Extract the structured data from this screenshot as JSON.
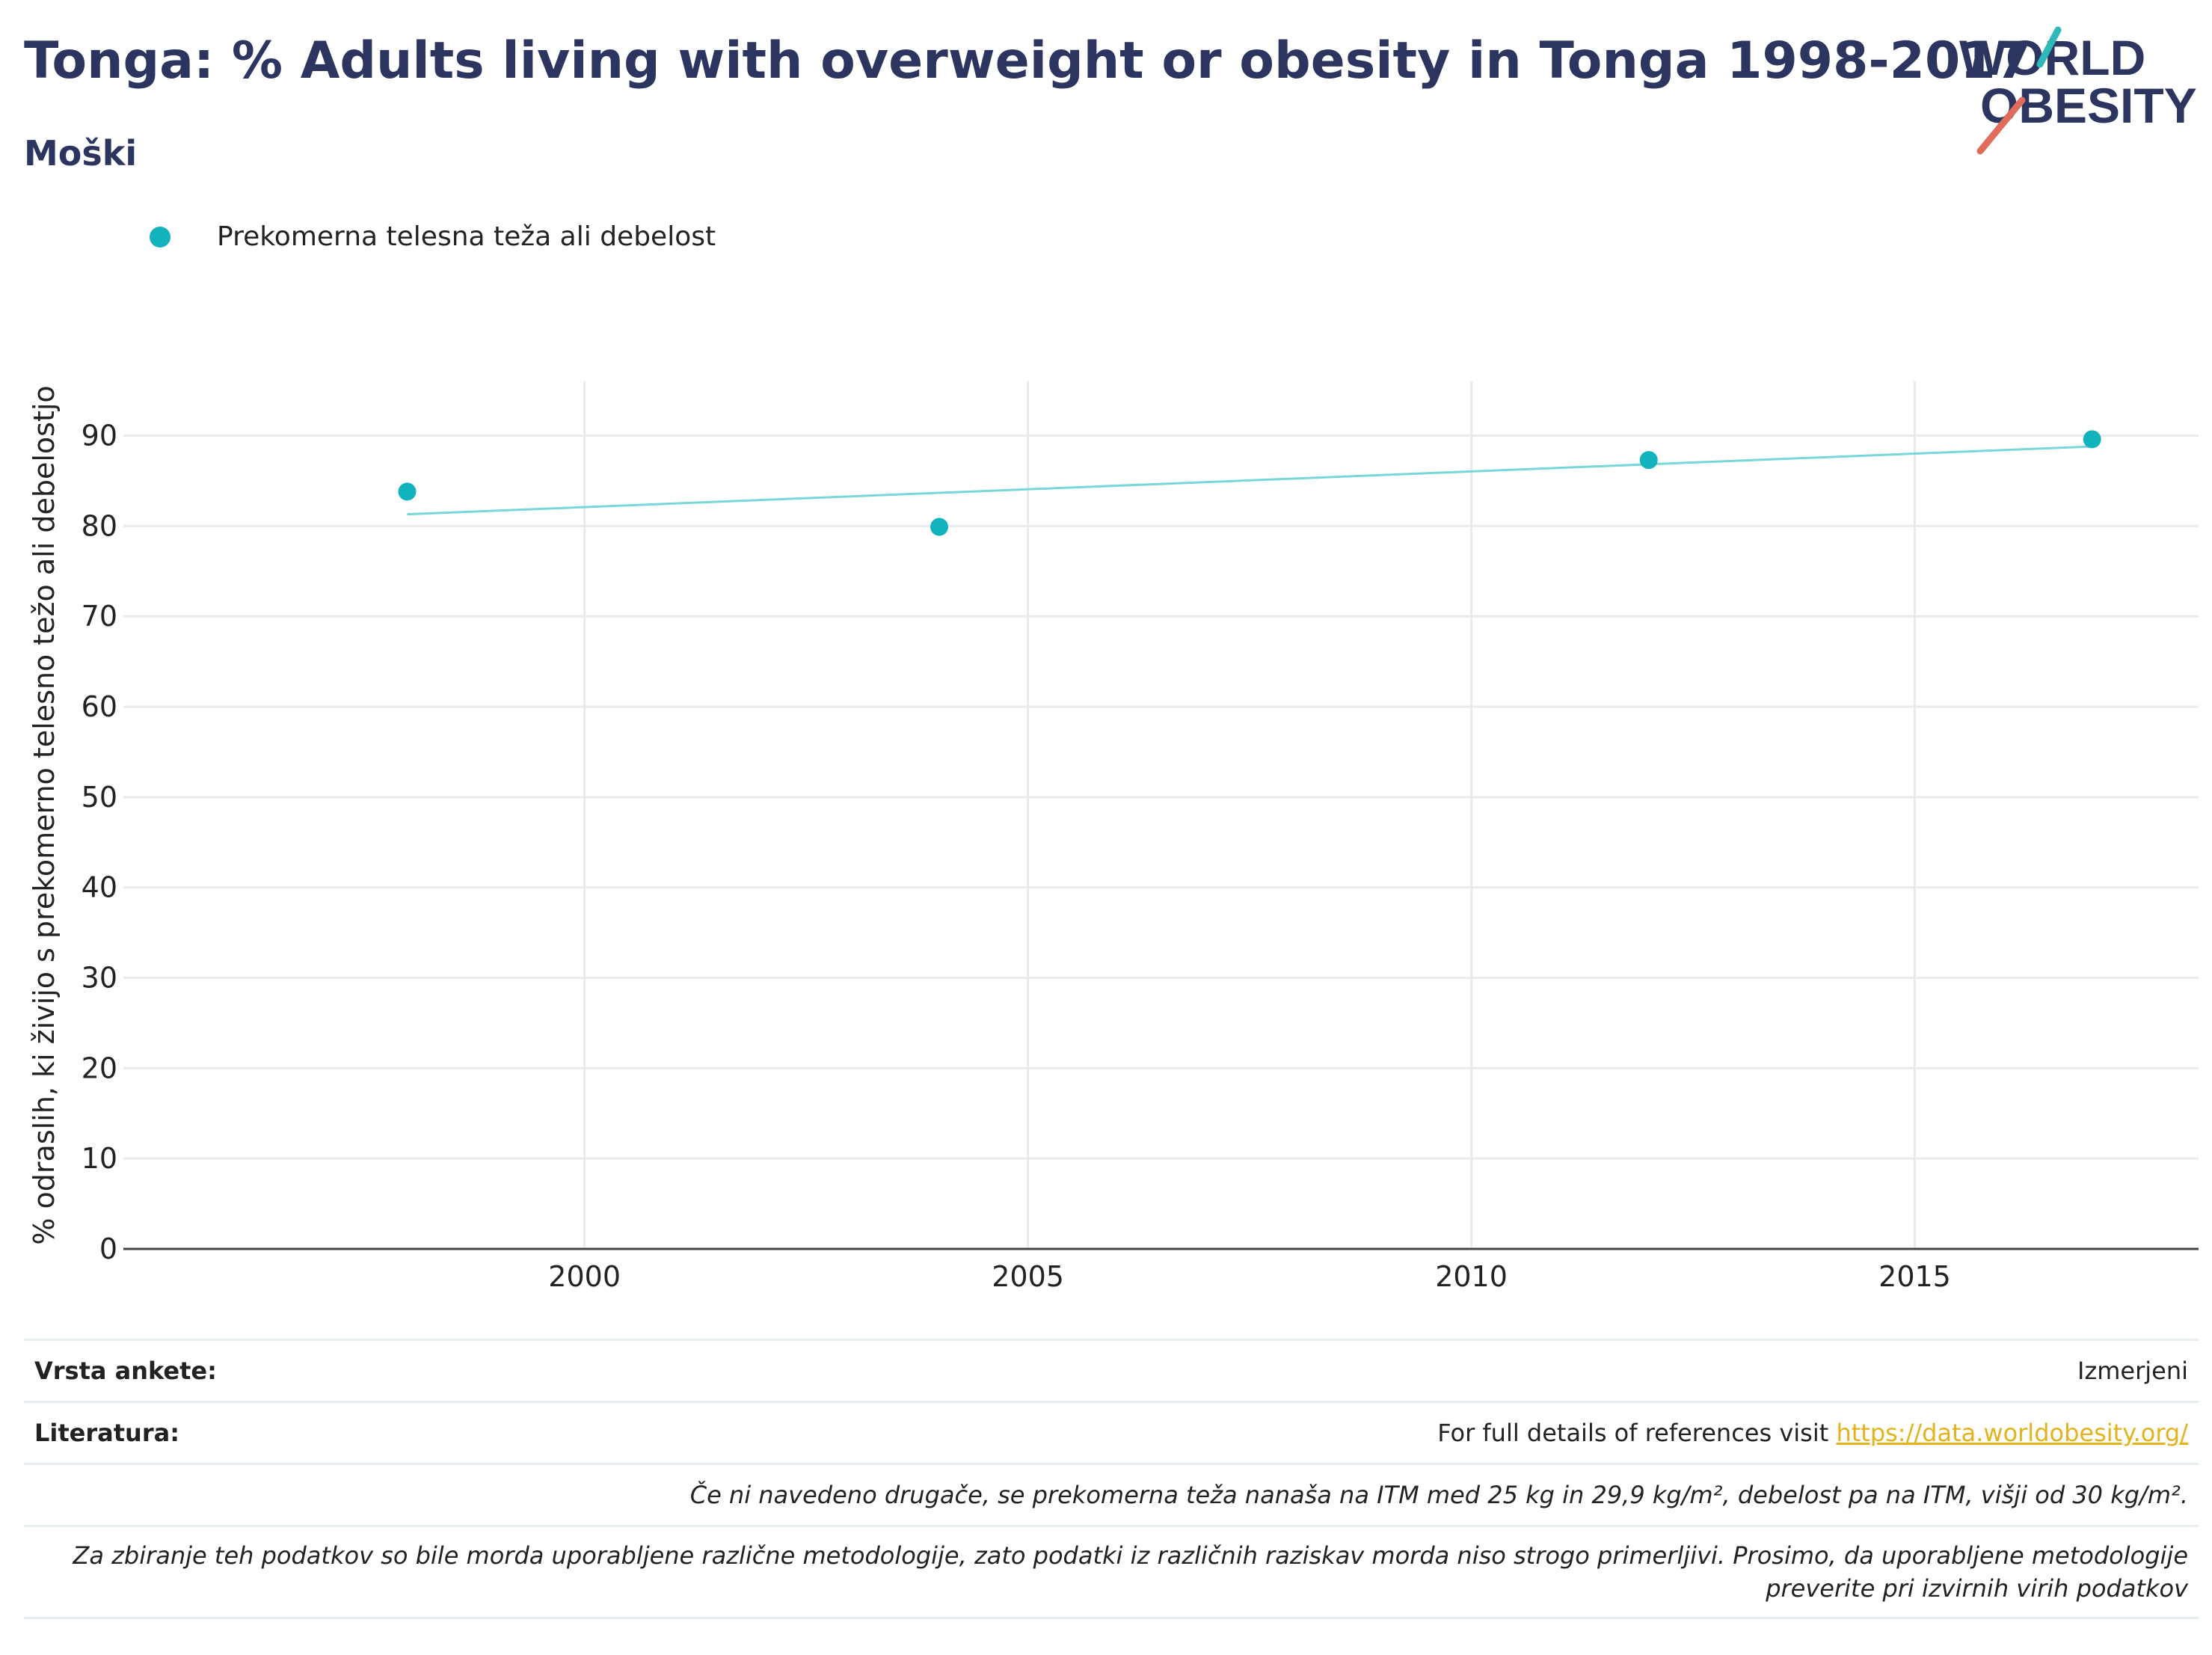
{
  "header": {
    "title": "Tonga: % Adults living with overweight or obesity in Tonga 1998-2017",
    "subtitle": "Moški",
    "logo_text_1": "WORLD",
    "logo_text_2": "OBESITY"
  },
  "chart_data": {
    "type": "scatter",
    "series": [
      {
        "name": "Prekomerna telesna teža ali debelost",
        "color": "#12b3bd",
        "points": [
          {
            "x": 1998,
            "y": 83.8
          },
          {
            "x": 2004,
            "y": 79.9
          },
          {
            "x": 2012,
            "y": 87.3
          },
          {
            "x": 2017,
            "y": 89.6
          }
        ],
        "trendline": {
          "color": "#79d7da",
          "points": [
            {
              "x": 1998,
              "y": 81.3
            },
            {
              "x": 2017,
              "y": 88.8
            }
          ]
        }
      }
    ],
    "ylabel": "% odraslih, ki živijo s prekomerno telesno težo ali debelostjo",
    "xlabel": "",
    "xlim": [
      1994.8,
      2018.2
    ],
    "ylim": [
      0,
      96
    ],
    "xticks": [
      2000,
      2005,
      2010,
      2015
    ],
    "yticks": [
      0,
      10,
      20,
      30,
      40,
      50,
      60,
      70,
      80,
      90
    ],
    "grid": true,
    "legend_position": "top-left"
  },
  "footer": {
    "survey_label": "Vrsta ankete:",
    "survey_value": "Izmerjeni",
    "refs_label": "Literatura:",
    "refs_text": "For full details of references visit ",
    "refs_link": "https://data.worldobesity.org/",
    "note1": "Če ni navedeno drugače, se prekomerna teža nanaša na ITM med 25 kg in 29,9 kg/m², debelost pa na ITM, višji od 30 kg/m².",
    "note2": "Za zbiranje teh podatkov so bile morda uporabljene različne metodologije, zato podatki iz različnih raziskav morda niso strogo primerljivi. Prosimo, da uporabljene metodologije preverite pri izvirnih virih podatkov"
  }
}
